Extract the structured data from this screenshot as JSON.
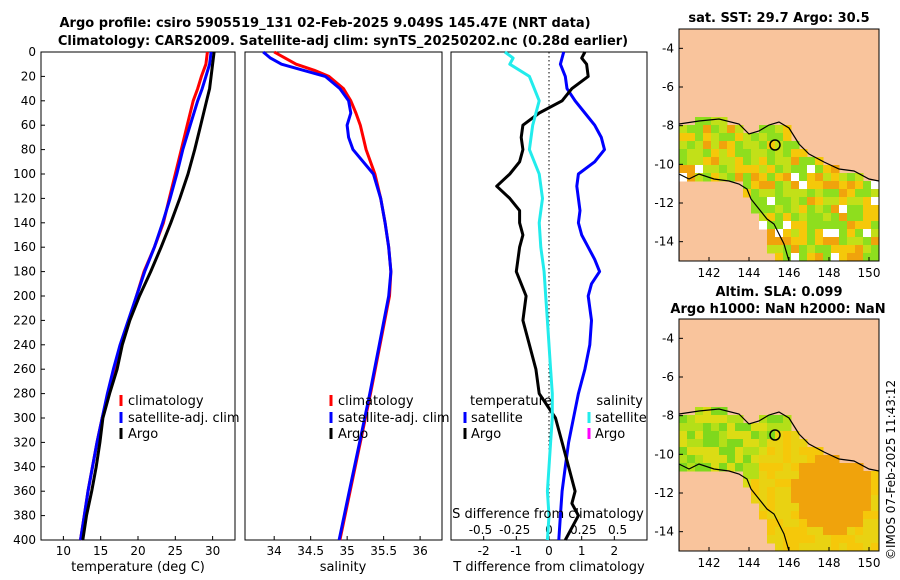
{
  "header": {
    "title_line1": "Argo profile: csiro 5905519_131 02-Feb-2025 9.049S 145.47E (NRT data)",
    "title_line2": "Climatology: CARS2009. Satellite-adj clim: synTS_20250202.nc (0.28d earlier)"
  },
  "watermark": "©IMOS 07-Feb-2025 11:43:12",
  "colors": {
    "climatology": "#ff0000",
    "satellite": "#0000ff",
    "argo": "#000000",
    "salinity_satellite": "#22ecec",
    "salinity_argo": "#ff00ff",
    "land": "#f9c49c",
    "coast": "#000000"
  },
  "chart_data": [
    {
      "id": "temperature",
      "type": "line",
      "xlabel": "temperature (deg C)",
      "ylabel": "depth",
      "xlim": [
        7,
        33
      ],
      "ylim": [
        400,
        0
      ],
      "xticks": [
        "10",
        "15",
        "20",
        "25",
        "30"
      ],
      "xtick_values": [
        10,
        15,
        20,
        25,
        30
      ],
      "yticks": [
        "0",
        "20",
        "40",
        "60",
        "80",
        "100",
        "120",
        "140",
        "160",
        "180",
        "200",
        "220",
        "240",
        "260",
        "280",
        "300",
        "320",
        "340",
        "360",
        "380",
        "400"
      ],
      "ytick_values": [
        0,
        20,
        40,
        60,
        80,
        100,
        120,
        140,
        160,
        180,
        200,
        220,
        240,
        260,
        280,
        300,
        320,
        340,
        360,
        380,
        400
      ],
      "legend": [
        "climatology",
        "satellite-adj. clim",
        "Argo"
      ],
      "depth": [
        0,
        10,
        20,
        30,
        40,
        60,
        80,
        100,
        120,
        140,
        160,
        180,
        200,
        220,
        240,
        260,
        280,
        300,
        320,
        340,
        360,
        380,
        400
      ],
      "series": [
        {
          "name": "climatology",
          "color": "#ff0000",
          "values": [
            29.3,
            29.1,
            28.5,
            28.0,
            27.4,
            26.6,
            25.8,
            25.0,
            24.2,
            23.4,
            22.2,
            20.8,
            19.8,
            18.8,
            17.8,
            16.9,
            16.0,
            15.2,
            14.5,
            13.9,
            13.3,
            12.8,
            12.3
          ]
        },
        {
          "name": "satellite-adj. clim",
          "color": "#0000ff",
          "values": [
            29.8,
            29.6,
            29.1,
            28.6,
            28.0,
            27.0,
            26.0,
            25.2,
            24.3,
            23.3,
            22.2,
            20.9,
            19.8,
            18.7,
            17.6,
            16.7,
            15.9,
            15.2,
            14.5,
            13.9,
            13.3,
            12.8,
            12.3
          ]
        },
        {
          "name": "Argo",
          "color": "#000000",
          "values": [
            30.2,
            30.0,
            29.8,
            29.6,
            29.2,
            28.4,
            27.6,
            26.7,
            25.6,
            24.4,
            23.1,
            21.7,
            20.2,
            18.9,
            17.9,
            17.2,
            16.2,
            15.3,
            14.9,
            14.4,
            13.8,
            13.1,
            12.6
          ]
        }
      ]
    },
    {
      "id": "salinity",
      "type": "line",
      "xlabel": "salinity",
      "xlim": [
        33.6,
        36.3
      ],
      "ylim": [
        400,
        0
      ],
      "xticks": [
        "34",
        "34.5",
        "35",
        "35.5",
        "36"
      ],
      "xtick_values": [
        34,
        34.5,
        35,
        35.5,
        36
      ],
      "legend": [
        "climatology",
        "satellite-adj. clim",
        "Argo"
      ],
      "depth": [
        0,
        5,
        10,
        15,
        20,
        30,
        40,
        50,
        60,
        70,
        80,
        100,
        120,
        140,
        160,
        180,
        200,
        240,
        280,
        320,
        360,
        400
      ],
      "series": [
        {
          "name": "climatology",
          "color": "#ff0000",
          "values": [
            34.0,
            34.15,
            34.3,
            34.55,
            34.75,
            34.95,
            35.05,
            35.12,
            35.18,
            35.22,
            35.26,
            35.38,
            35.46,
            35.52,
            35.57,
            35.6,
            35.58,
            35.45,
            35.32,
            35.18,
            35.04,
            34.9
          ]
        },
        {
          "name": "satellite-adj. clim",
          "color": "#0000ff",
          "values": [
            33.85,
            33.95,
            34.1,
            34.4,
            34.7,
            34.9,
            35.02,
            35.05,
            35.0,
            35.02,
            35.08,
            35.36,
            35.46,
            35.52,
            35.57,
            35.6,
            35.57,
            35.44,
            35.31,
            35.17,
            35.03,
            34.89
          ]
        }
      ]
    },
    {
      "id": "difference",
      "type": "line",
      "xlabel": "T difference from climatology",
      "top_axis_label": "S difference from climatology",
      "xlim": [
        -3,
        3
      ],
      "ylim": [
        400,
        0
      ],
      "xticks": [
        "-2",
        "-1",
        "0",
        "1",
        "2"
      ],
      "xtick_values": [
        -2,
        -1,
        0,
        1,
        2
      ],
      "sticks": [
        "-0.5",
        "-0.25",
        "0",
        "0.25",
        "0.5"
      ],
      "stick_positions": [
        -2.1,
        -1.05,
        0,
        1.05,
        2.1
      ],
      "legend_temperature_title": "temperature",
      "legend_salinity_title": "salinity",
      "legend_temperature": [
        "satellite",
        "Argo"
      ],
      "legend_salinity": [
        "satellite",
        "Argo"
      ],
      "series": [
        {
          "name": "T satellite",
          "color": "#0000ff",
          "depth": [
            0,
            10,
            20,
            30,
            40,
            50,
            60,
            70,
            80,
            90,
            100,
            110,
            120,
            130,
            140,
            150,
            160,
            170,
            180,
            190,
            200,
            220,
            240,
            260,
            280,
            300,
            320,
            340,
            360,
            380,
            400
          ],
          "values": [
            0.45,
            0.35,
            0.5,
            0.55,
            0.8,
            1.1,
            1.4,
            1.6,
            1.7,
            1.4,
            0.9,
            0.85,
            0.9,
            0.95,
            0.9,
            1.0,
            1.2,
            1.4,
            1.55,
            1.3,
            1.2,
            1.3,
            1.25,
            1.1,
            0.9,
            0.75,
            0.6,
            0.5,
            0.4,
            0.35,
            0.3
          ]
        },
        {
          "name": "T Argo",
          "color": "#000000",
          "depth": [
            0,
            5,
            10,
            20,
            30,
            40,
            50,
            60,
            70,
            80,
            90,
            100,
            110,
            120,
            130,
            140,
            150,
            160,
            180,
            200,
            220,
            240,
            260,
            280,
            300,
            320,
            340,
            360,
            370,
            380,
            400
          ],
          "values": [
            1.1,
            1.0,
            1.15,
            1.2,
            0.7,
            0.4,
            -0.3,
            -0.8,
            -0.85,
            -0.8,
            -0.9,
            -1.2,
            -1.6,
            -1.2,
            -0.9,
            -0.9,
            -0.8,
            -0.9,
            -1.0,
            -0.7,
            -0.8,
            -0.6,
            -0.4,
            -0.3,
            0.2,
            0.4,
            0.6,
            0.8,
            0.7,
            0.9,
            0.5
          ]
        },
        {
          "name": "S satellite",
          "color": "#22ecec",
          "depth": [
            0,
            5,
            10,
            20,
            40,
            60,
            80,
            100,
            120,
            140,
            160,
            180,
            200,
            220,
            240,
            260,
            280,
            300,
            320,
            340,
            360,
            380,
            400
          ],
          "values": [
            -1.35,
            -1.1,
            -1.2,
            -0.6,
            -0.3,
            -0.5,
            -0.6,
            -0.3,
            -0.2,
            -0.3,
            -0.25,
            -0.15,
            -0.1,
            -0.05,
            0.0,
            0.05,
            0.1,
            0.1,
            0.05,
            0.0,
            -0.05,
            0.0,
            -0.05
          ]
        }
      ]
    }
  ],
  "maps": {
    "sst": {
      "title": "sat. SST: 29.7 Argo: 30.5",
      "xticks": [
        "142",
        "144",
        "146",
        "148",
        "150"
      ],
      "yticks": [
        "-4",
        "-6",
        "-8",
        "-10",
        "-12",
        "-14"
      ],
      "lon_range": [
        140.5,
        150.5
      ],
      "lat_range": [
        -15,
        -3
      ],
      "tick_lon": [
        142,
        144,
        146,
        148,
        150
      ],
      "tick_lat": [
        -4,
        -6,
        -8,
        -10,
        -12,
        -14
      ]
    },
    "sla": {
      "title1": "Altim. SLA: 0.099",
      "title2": "Argo h1000: NaN h2000: NaN",
      "xticks": [
        "142",
        "144",
        "146",
        "148",
        "150"
      ],
      "yticks": [
        "-4",
        "-6",
        "-8",
        "-10",
        "-12",
        "-14"
      ],
      "lon_range": [
        140.5,
        150.5
      ],
      "lat_range": [
        -15,
        -3
      ],
      "tick_lon": [
        142,
        144,
        146,
        148,
        150
      ],
      "tick_lat": [
        -4,
        -6,
        -8,
        -10,
        -12,
        -14
      ]
    }
  }
}
